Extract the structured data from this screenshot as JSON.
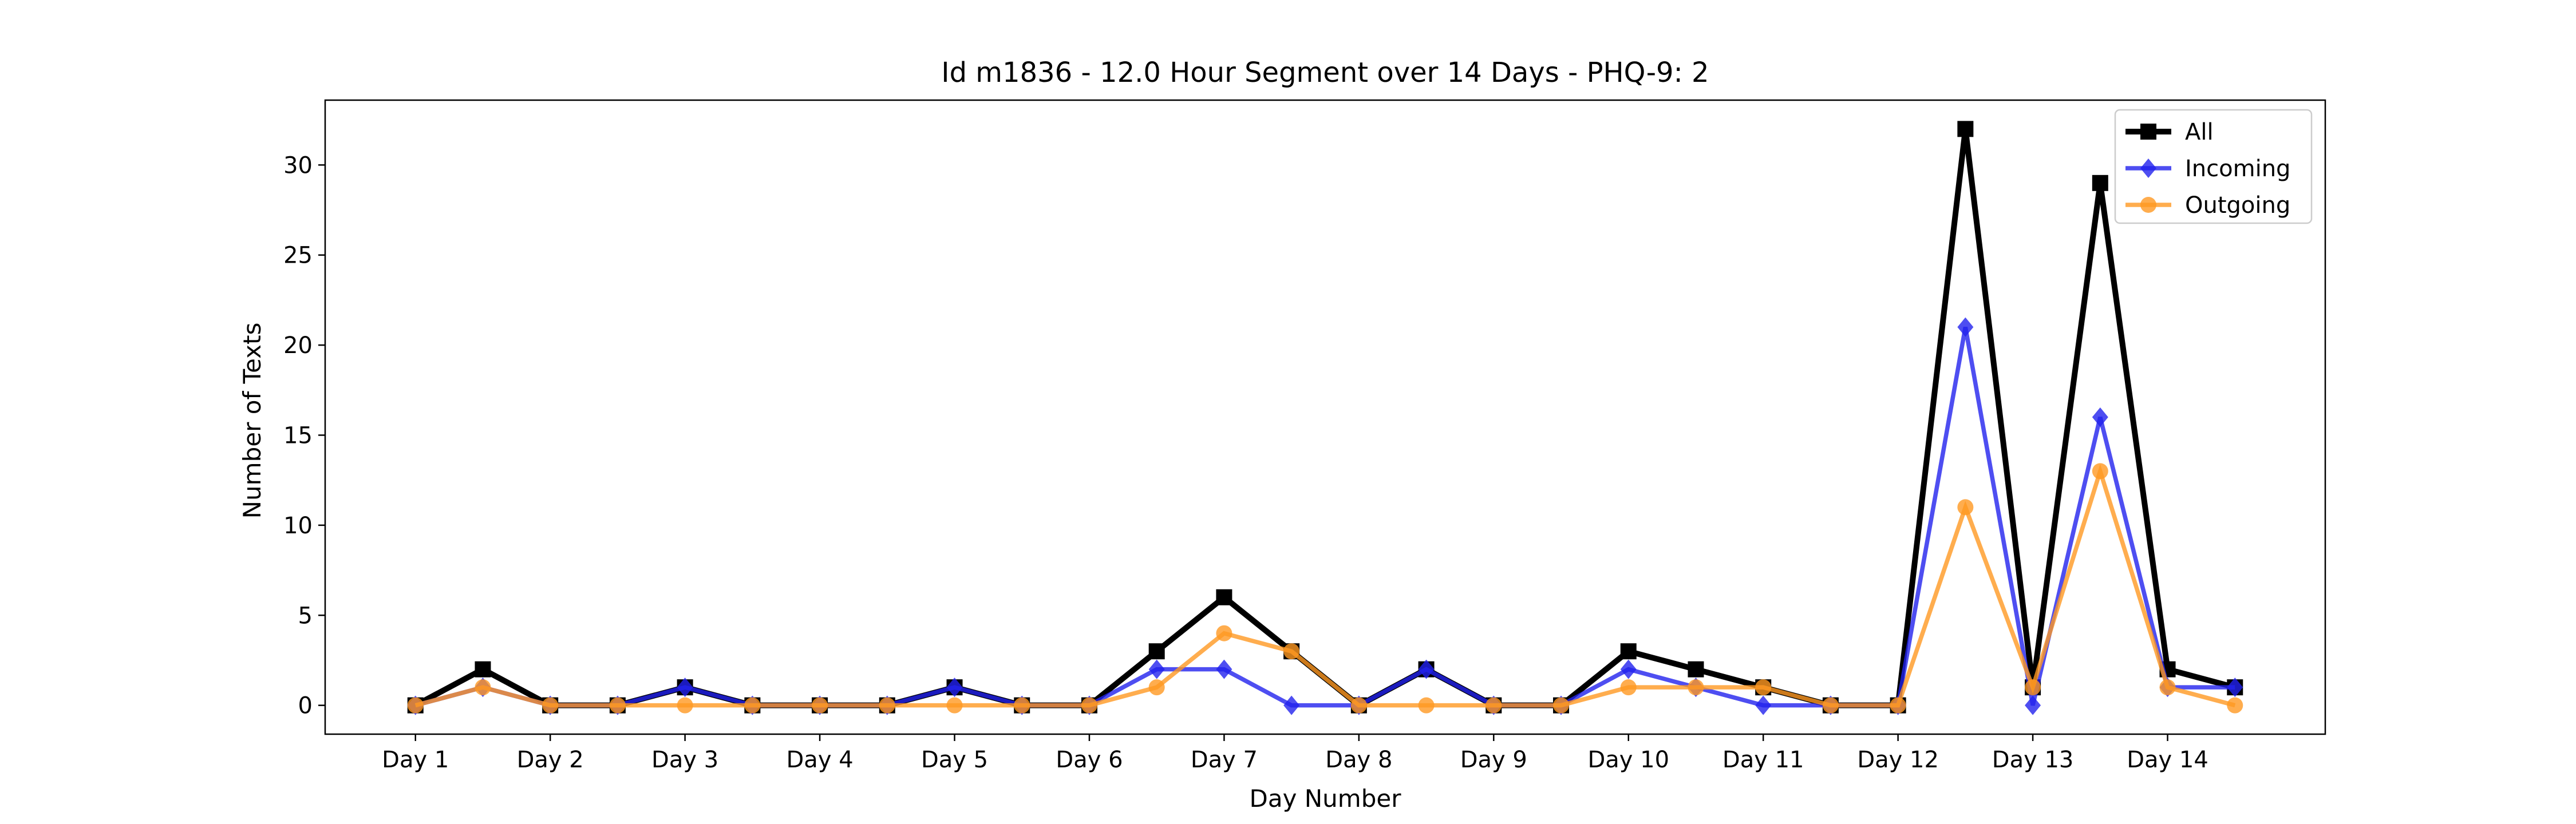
{
  "chart_data": {
    "type": "line",
    "title": "Id m1836 - 12.0 Hour Segment over 14 Days - PHQ-9: 2",
    "xlabel": "Day Number",
    "ylabel": "Number of Texts",
    "categories": [
      "Day 1",
      "Day 2",
      "Day 3",
      "Day 4",
      "Day 5",
      "Day 6",
      "Day 7",
      "Day 8",
      "Day 9",
      "Day 10",
      "Day 11",
      "Day 12",
      "Day 13",
      "Day 14"
    ],
    "x": [
      1,
      1.5,
      2,
      2.5,
      3,
      3.5,
      4,
      4.5,
      5,
      5.5,
      6,
      6.5,
      7,
      7.5,
      8,
      8.5,
      9,
      9.5,
      10,
      10.5,
      11,
      11.5,
      12,
      12.5,
      13,
      13.5,
      14,
      14.5
    ],
    "ylim": [
      -1.6,
      33.6
    ],
    "xlim": [
      0.33,
      15.17
    ],
    "yticks": [
      0,
      5,
      10,
      15,
      20,
      25,
      30
    ],
    "grid": false,
    "legend_position": "top-right",
    "series": [
      {
        "name": "All",
        "color": "#000000",
        "marker": "square",
        "values": [
          0,
          2,
          0,
          0,
          1,
          0,
          0,
          0,
          1,
          0,
          0,
          3,
          6,
          3,
          0,
          2,
          0,
          0,
          3,
          2,
          1,
          0,
          0,
          32,
          1,
          29,
          2,
          1
        ]
      },
      {
        "name": "Incoming",
        "color": "#2222ee",
        "marker": "diamond",
        "values": [
          0,
          1,
          0,
          0,
          1,
          0,
          0,
          0,
          1,
          0,
          0,
          2,
          2,
          0,
          0,
          2,
          0,
          0,
          2,
          1,
          0,
          0,
          0,
          21,
          0,
          16,
          1,
          1
        ]
      },
      {
        "name": "Outgoing",
        "color": "#ff9922",
        "marker": "circle",
        "values": [
          0,
          1,
          0,
          0,
          0,
          0,
          0,
          0,
          0,
          0,
          0,
          1,
          4,
          3,
          0,
          0,
          0,
          0,
          1,
          1,
          1,
          0,
          0,
          11,
          1,
          13,
          1,
          0
        ]
      }
    ]
  }
}
